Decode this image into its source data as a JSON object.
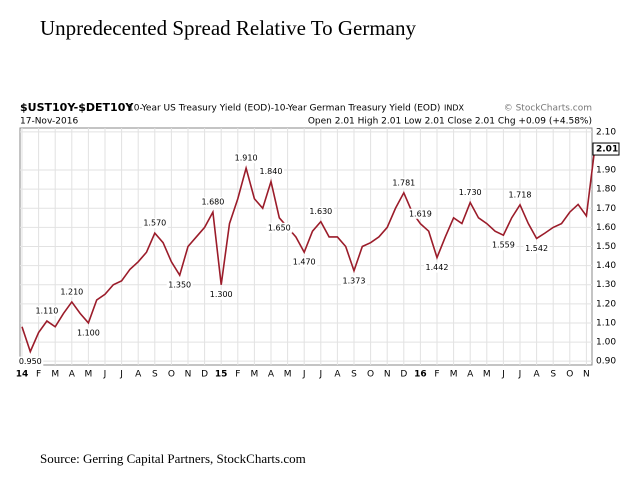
{
  "chart_data": {
    "type": "line",
    "title": "Unpredecented Spread Relative To Germany",
    "symbol": "$UST10Y-$DET10Y",
    "description": "10-Year US Treasury Yield (EOD)-10-Year German Treasury Yield (EOD)",
    "exchange": "INDX",
    "credit": "© StockCharts.com",
    "date": "17-Nov-2016",
    "quote": "Open 2.01 High 2.01 Low 2.01 Close 2.01 Chg +0.09 (+4.58%)",
    "source": "Source: Gerring Capital Partners, StockCharts.com",
    "categories": [
      "14",
      null,
      "F",
      null,
      "M",
      null,
      "A",
      null,
      "M",
      null,
      "J",
      null,
      "J",
      null,
      "A",
      null,
      "S",
      null,
      "O",
      null,
      "N",
      null,
      "D",
      null,
      "15",
      null,
      "F",
      null,
      "M",
      null,
      "A",
      null,
      "M",
      null,
      "J",
      null,
      "J",
      null,
      "A",
      null,
      "S",
      null,
      "O",
      null,
      "N",
      null,
      "D",
      null,
      "16",
      null,
      "F",
      null,
      "M",
      null,
      "A",
      null,
      "M",
      null,
      "J",
      null,
      "J",
      null,
      "A",
      null,
      "S",
      null,
      "O",
      null,
      "N",
      null
    ],
    "series": [
      {
        "name": "$UST10Y-$DET10Y",
        "color": "#9b1c2a",
        "values": [
          1.08,
          0.95,
          1.05,
          1.11,
          1.08,
          1.15,
          1.21,
          1.15,
          1.1,
          1.22,
          1.25,
          1.3,
          1.32,
          1.38,
          1.42,
          1.47,
          1.57,
          1.52,
          1.42,
          1.35,
          1.5,
          1.55,
          1.6,
          1.68,
          1.3,
          1.62,
          1.75,
          1.91,
          1.75,
          1.7,
          1.84,
          1.65,
          1.6,
          1.55,
          1.47,
          1.58,
          1.63,
          1.55,
          1.55,
          1.5,
          1.373,
          1.5,
          1.52,
          1.55,
          1.6,
          1.7,
          1.781,
          1.68,
          1.619,
          1.58,
          1.442,
          1.55,
          1.65,
          1.62,
          1.73,
          1.65,
          1.62,
          1.58,
          1.559,
          1.65,
          1.718,
          1.62,
          1.542,
          1.57,
          1.6,
          1.62,
          1.68,
          1.72,
          1.66,
          2.01
        ]
      }
    ],
    "annotations": [
      {
        "value": 1.11,
        "label": "1.110"
      },
      {
        "value": 0.95,
        "label": "0.950"
      },
      {
        "value": 1.21,
        "label": "1.210"
      },
      {
        "value": 1.1,
        "label": "1.100"
      },
      {
        "value": 1.57,
        "label": "1.570"
      },
      {
        "value": 1.35,
        "label": "1.350"
      },
      {
        "value": 1.68,
        "label": "1.680"
      },
      {
        "value": 1.3,
        "label": "1.300"
      },
      {
        "value": 1.91,
        "label": "1.910"
      },
      {
        "value": 1.84,
        "label": "1.840"
      },
      {
        "value": 1.65,
        "label": "1.650"
      },
      {
        "value": 1.47,
        "label": "1.470"
      },
      {
        "value": 1.63,
        "label": "1.630"
      },
      {
        "value": 1.373,
        "label": "1.373"
      },
      {
        "value": 1.781,
        "label": "1.781"
      },
      {
        "value": 1.619,
        "label": "1.619"
      },
      {
        "value": 1.442,
        "label": "1.442"
      },
      {
        "value": 1.73,
        "label": "1.730"
      },
      {
        "value": 1.559,
        "label": "1.559"
      },
      {
        "value": 1.718,
        "label": "1.718"
      },
      {
        "value": 1.542,
        "label": "1.542"
      }
    ],
    "last_value": {
      "value": 2.01,
      "label": "2.01"
    },
    "ylim": [
      0.88,
      2.12
    ],
    "yticks": [
      {
        "value": 0.9,
        "label": "0.90"
      },
      {
        "value": 1.0,
        "label": "1.00"
      },
      {
        "value": 1.1,
        "label": "1.10"
      },
      {
        "value": 1.2,
        "label": "1.20"
      },
      {
        "value": 1.3,
        "label": "1.30"
      },
      {
        "value": 1.4,
        "label": "1.40"
      },
      {
        "value": 1.5,
        "label": "1.50"
      },
      {
        "value": 1.6,
        "label": "1.60"
      },
      {
        "value": 1.7,
        "label": "1.70"
      },
      {
        "value": 1.8,
        "label": "1.80"
      },
      {
        "value": 1.9,
        "label": "1.90"
      },
      {
        "value": 2.1,
        "label": "2.10"
      }
    ],
    "grid": true
  }
}
